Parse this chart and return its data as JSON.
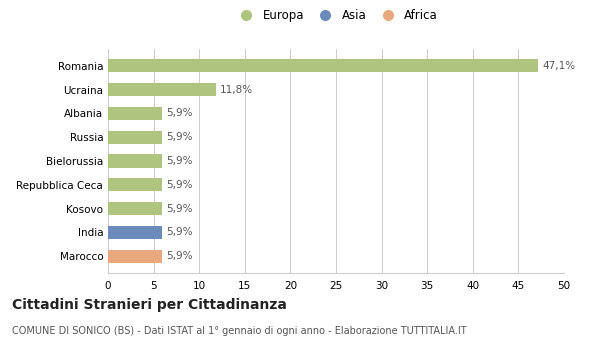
{
  "categories": [
    "Romania",
    "Ucraina",
    "Albania",
    "Russia",
    "Bielorussia",
    "Repubblica Ceca",
    "Kosovo",
    "India",
    "Marocco"
  ],
  "values": [
    47.1,
    11.8,
    5.9,
    5.9,
    5.9,
    5.9,
    5.9,
    5.9,
    5.9
  ],
  "labels": [
    "47,1%",
    "11,8%",
    "5,9%",
    "5,9%",
    "5,9%",
    "5,9%",
    "5,9%",
    "5,9%",
    "5,9%"
  ],
  "bar_colors": [
    "#aec47f",
    "#aec47f",
    "#aec47f",
    "#aec47f",
    "#aec47f",
    "#aec47f",
    "#aec47f",
    "#6b8cba",
    "#e8a97e"
  ],
  "legend_labels": [
    "Europa",
    "Asia",
    "Africa"
  ],
  "legend_colors": [
    "#aec47f",
    "#6b8cba",
    "#e8a97e"
  ],
  "xlim": [
    0,
    50
  ],
  "xticks": [
    0,
    5,
    10,
    15,
    20,
    25,
    30,
    35,
    40,
    45,
    50
  ],
  "title": "Cittadini Stranieri per Cittadinanza",
  "subtitle": "COMUNE DI SONICO (BS) - Dati ISTAT al 1° gennaio di ogni anno - Elaborazione TUTTITALIA.IT",
  "bg_color": "#ffffff",
  "grid_color": "#cccccc",
  "bar_height": 0.55,
  "label_fontsize": 7.5,
  "tick_fontsize": 7.5,
  "title_fontsize": 10,
  "subtitle_fontsize": 7
}
